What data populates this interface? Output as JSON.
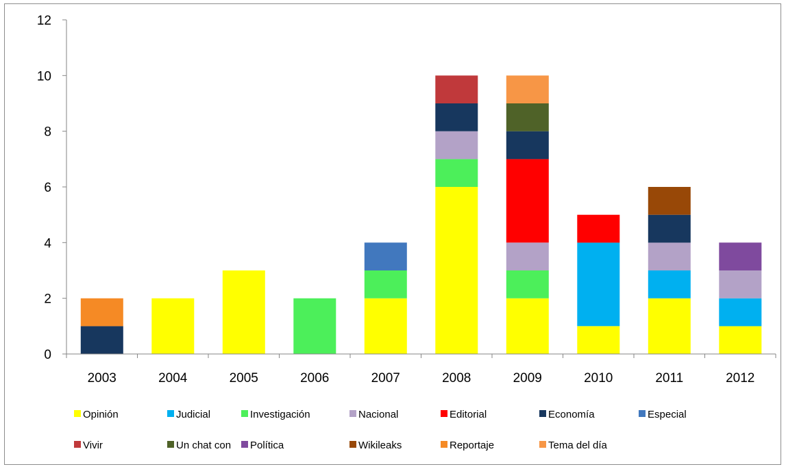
{
  "chart_data": {
    "type": "bar",
    "stacked": true,
    "categories": [
      "2003",
      "2004",
      "2005",
      "2006",
      "2007",
      "2008",
      "2009",
      "2010",
      "2011",
      "2012"
    ],
    "ylim": [
      0,
      12
    ],
    "yticks": [
      0,
      2,
      4,
      6,
      8,
      10,
      12
    ],
    "grid": false,
    "legend_position": "bottom",
    "title": "",
    "xlabel": "",
    "ylabel": "",
    "series": [
      {
        "name": "Opinión",
        "color": "#ffff00",
        "values": [
          0,
          2,
          3,
          0,
          2,
          6,
          2,
          1,
          2,
          1
        ]
      },
      {
        "name": "Judicial",
        "color": "#00b0f0",
        "values": [
          0,
          0,
          0,
          0,
          0,
          0,
          0,
          3,
          1,
          1
        ]
      },
      {
        "name": "Investigación",
        "color": "#4cef5a",
        "values": [
          0,
          0,
          0,
          2,
          1,
          1,
          1,
          0,
          0,
          0
        ]
      },
      {
        "name": "Nacional",
        "color": "#b3a2c7",
        "values": [
          0,
          0,
          0,
          0,
          0,
          1,
          1,
          0,
          1,
          1
        ]
      },
      {
        "name": "Editorial",
        "color": "#ff0000",
        "values": [
          0,
          0,
          0,
          0,
          0,
          0,
          3,
          1,
          0,
          0
        ]
      },
      {
        "name": "Economía",
        "color": "#17375e",
        "values": [
          1,
          0,
          0,
          0,
          0,
          1,
          1,
          0,
          1,
          0
        ]
      },
      {
        "name": "Especial",
        "color": "#4178be",
        "values": [
          0,
          0,
          0,
          0,
          1,
          0,
          0,
          0,
          0,
          0
        ]
      },
      {
        "name": "Vivir",
        "color": "#c0393b",
        "values": [
          0,
          0,
          0,
          0,
          0,
          1,
          0,
          0,
          0,
          0
        ]
      },
      {
        "name": "Un chat con",
        "color": "#4f6228",
        "values": [
          0,
          0,
          0,
          0,
          0,
          0,
          1,
          0,
          0,
          0
        ]
      },
      {
        "name": "Política",
        "color": "#7f4a9e",
        "values": [
          0,
          0,
          0,
          0,
          0,
          0,
          0,
          0,
          0,
          1
        ]
      },
      {
        "name": "Wikileaks",
        "color": "#984807",
        "values": [
          0,
          0,
          0,
          0,
          0,
          0,
          0,
          0,
          1,
          0
        ]
      },
      {
        "name": "Reportaje",
        "color": "#f58a25",
        "values": [
          1,
          0,
          0,
          0,
          0,
          0,
          0,
          0,
          0,
          0
        ]
      },
      {
        "name": "Tema del día",
        "color": "#f79646",
        "values": [
          0,
          0,
          0,
          0,
          0,
          0,
          1,
          0,
          0,
          0
        ]
      }
    ]
  }
}
